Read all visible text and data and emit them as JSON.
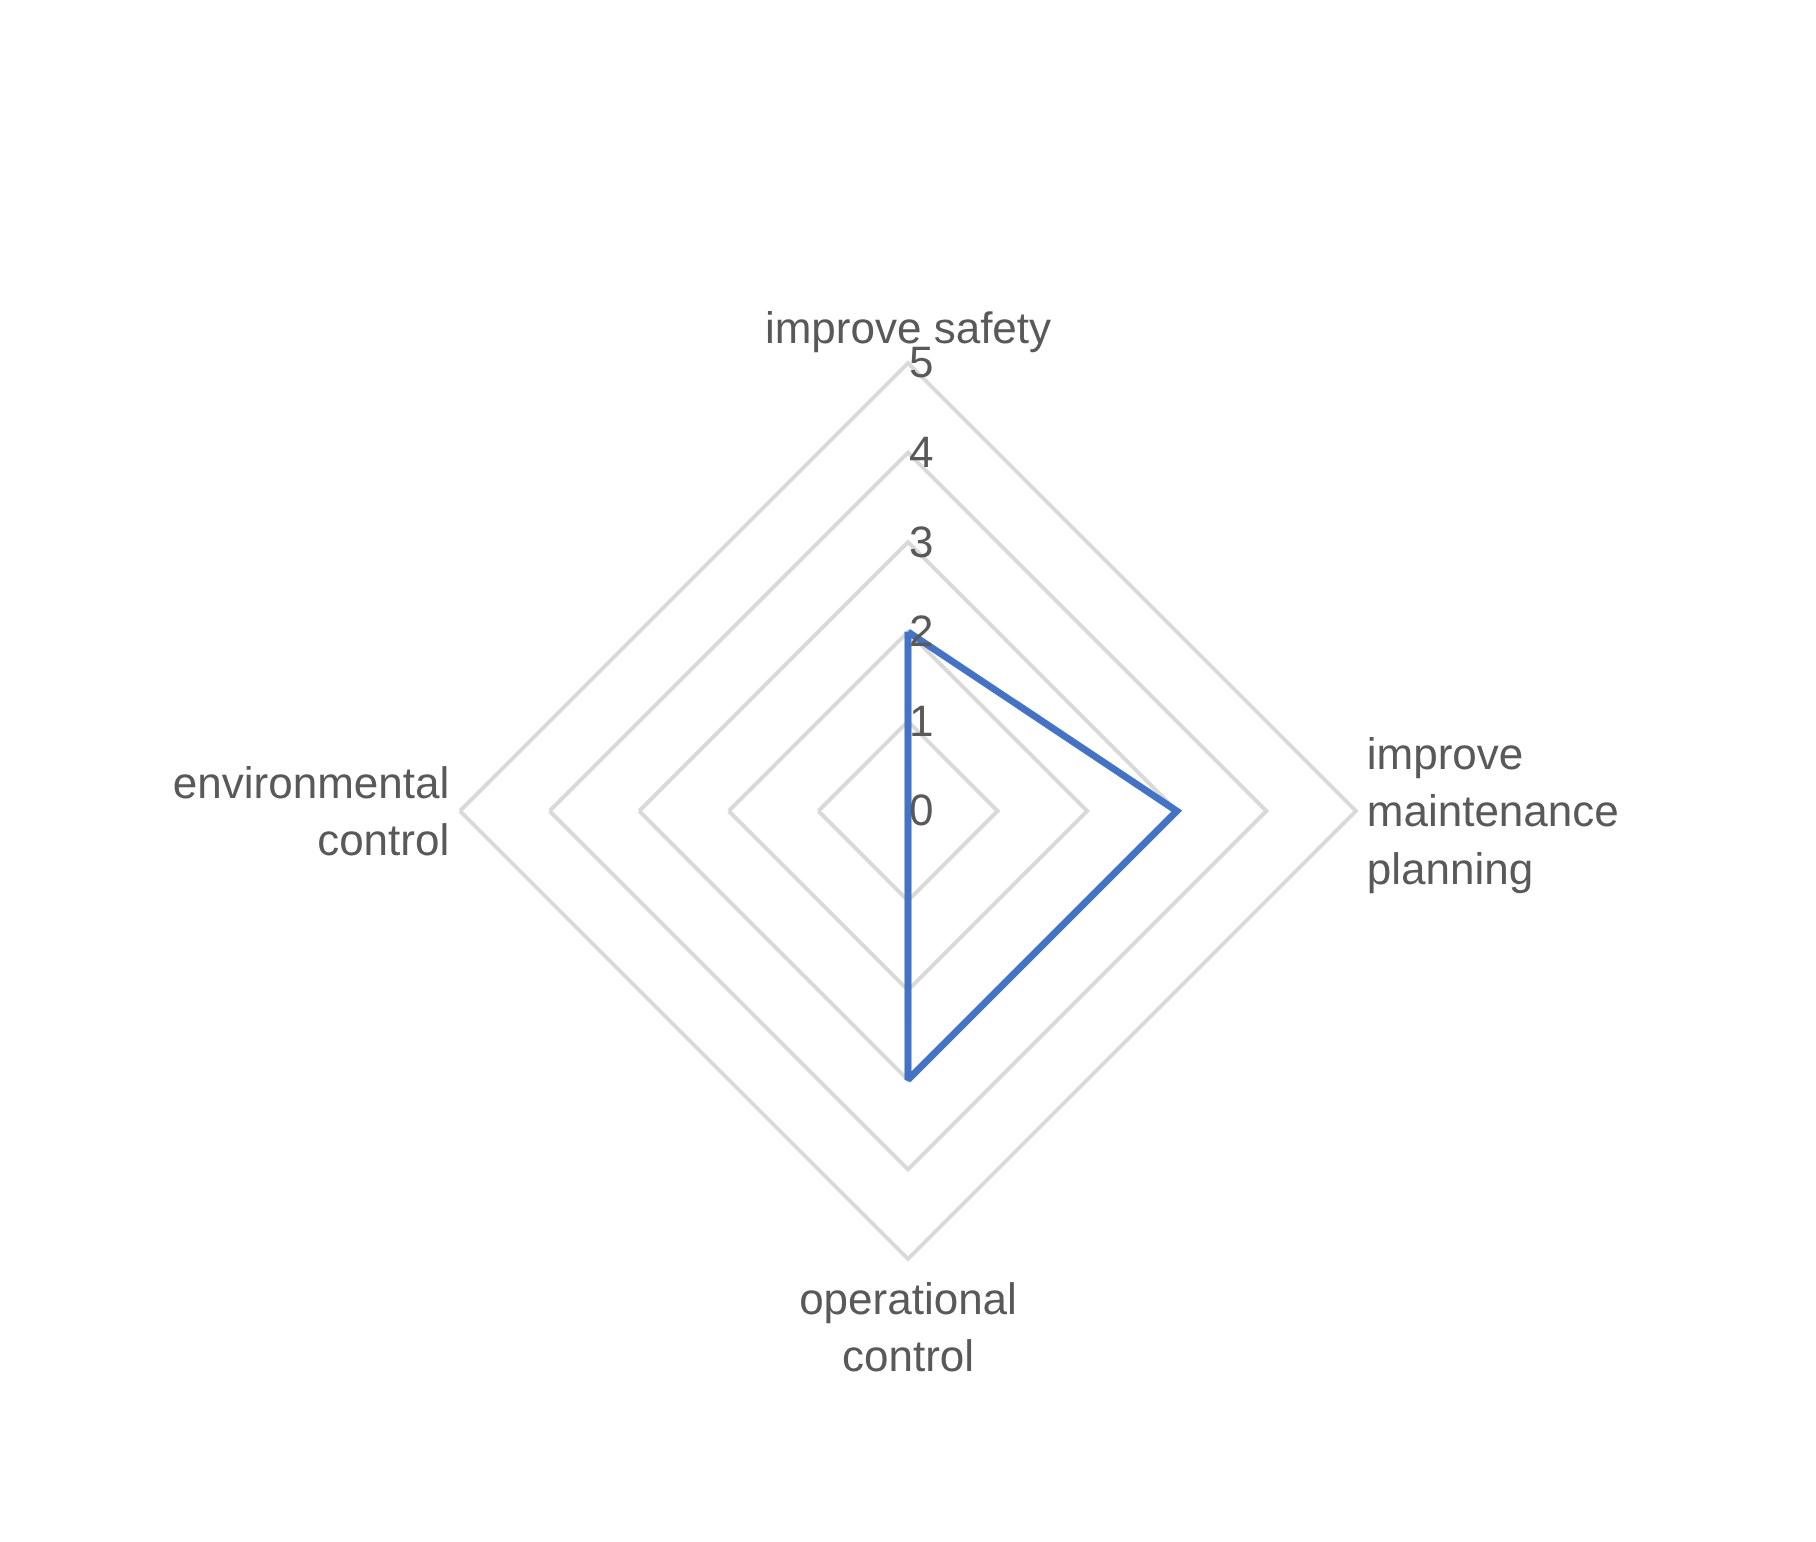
{
  "chart_data": {
    "type": "radar",
    "categories": [
      "improve safety",
      "improve maintenance planning",
      "operational control",
      "environmental control"
    ],
    "series": [
      {
        "color": "#4472c4",
        "values": [
          2,
          3,
          3,
          0
        ]
      }
    ],
    "ylim": [
      0,
      5
    ],
    "yticks": [
      0,
      1,
      2,
      3,
      4,
      5
    ],
    "grid": true,
    "marker": "none",
    "line_style": "solid"
  }
}
